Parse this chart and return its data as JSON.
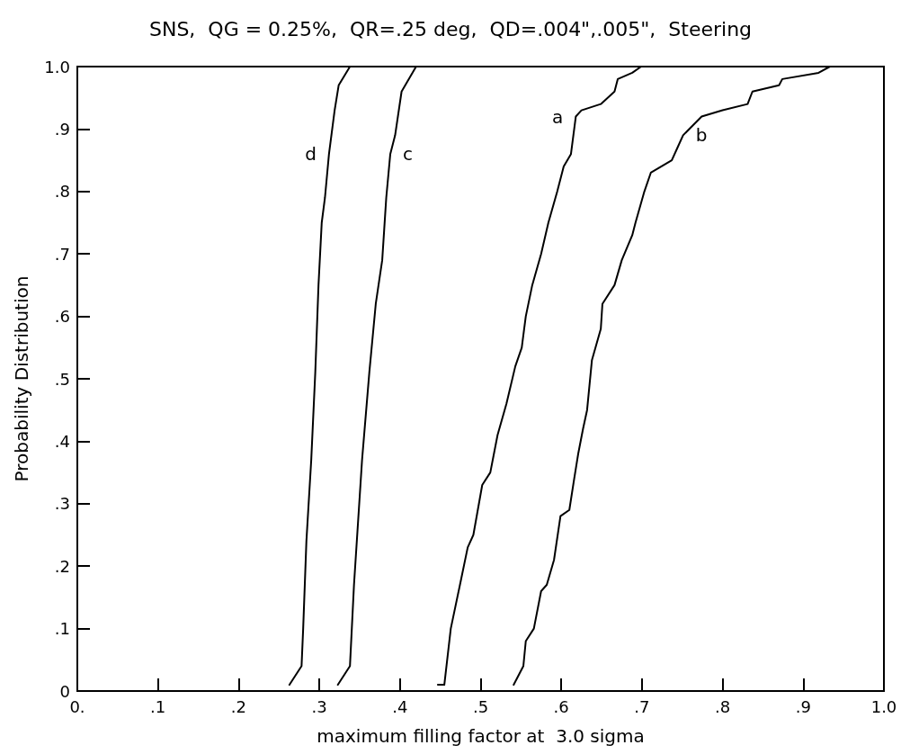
{
  "chart_data": {
    "type": "line",
    "title": "SNS,  QG = 0.25%,  QR=.25 deg,  QD=.004\",.005\",  Steering",
    "xlabel": "maximum filling factor at  3.0 sigma",
    "ylabel": "Probability Distribution",
    "xlim": [
      0,
      1
    ],
    "ylim": [
      0,
      1
    ],
    "xticks": [
      {
        "value": 0,
        "label": "0."
      },
      {
        "value": 0.1,
        "label": ".1"
      },
      {
        "value": 0.2,
        "label": ".2"
      },
      {
        "value": 0.3,
        "label": ".3"
      },
      {
        "value": 0.4,
        "label": ".4"
      },
      {
        "value": 0.5,
        "label": ".5"
      },
      {
        "value": 0.6,
        "label": ".6"
      },
      {
        "value": 0.7,
        "label": ".7"
      },
      {
        "value": 0.8,
        "label": ".8"
      },
      {
        "value": 0.9,
        "label": ".9"
      },
      {
        "value": 1,
        "label": "1.0"
      }
    ],
    "yticks": [
      0,
      {
        "value": 0.1,
        "label": ".1"
      },
      {
        "value": 0.2,
        "label": ".2"
      },
      {
        "value": 0.3,
        "label": ".3"
      },
      {
        "value": 0.4,
        "label": ".4"
      },
      {
        "value": 0.5,
        "label": ".5"
      },
      {
        "value": 0.6,
        "label": ".6"
      },
      {
        "value": 0.7,
        "label": ".7"
      },
      {
        "value": 0.8,
        "label": ".8"
      },
      {
        "value": 0.9,
        "label": ".9"
      },
      {
        "value": 1,
        "label": "1.0"
      }
    ],
    "grid": false,
    "marker": "none",
    "line_style": "solid",
    "series": [
      {
        "name": "d",
        "color": "#000000",
        "x": [
          0.263,
          0.278,
          0.28,
          0.284,
          0.29,
          0.295,
          0.299,
          0.303,
          0.307,
          0.312,
          0.319,
          0.324,
          0.338
        ],
        "values": [
          0.01,
          0.04,
          0.1,
          0.24,
          0.37,
          0.51,
          0.65,
          0.75,
          0.79,
          0.86,
          0.93,
          0.97,
          1.0
        ]
      },
      {
        "name": "c",
        "color": "#000000",
        "x": [
          0.323,
          0.338,
          0.343,
          0.353,
          0.362,
          0.37,
          0.378,
          0.383,
          0.388,
          0.394,
          0.402,
          0.42
        ],
        "values": [
          0.01,
          0.04,
          0.17,
          0.37,
          0.51,
          0.62,
          0.69,
          0.79,
          0.86,
          0.89,
          0.96,
          1.0
        ]
      },
      {
        "name": "a",
        "color": "#000000",
        "x": [
          0.447,
          0.455,
          0.463,
          0.476,
          0.484,
          0.491,
          0.502,
          0.512,
          0.521,
          0.532,
          0.543,
          0.551,
          0.554,
          0.556,
          0.564,
          0.575,
          0.584,
          0.595,
          0.603,
          0.612,
          0.618,
          0.625,
          0.649,
          0.666,
          0.67,
          0.688,
          0.699,
          0.721
        ],
        "values": [
          0.01,
          0.01,
          0.1,
          0.18,
          0.23,
          0.25,
          0.33,
          0.35,
          0.41,
          0.46,
          0.52,
          0.55,
          0.58,
          0.6,
          0.65,
          0.7,
          0.75,
          0.8,
          0.84,
          0.86,
          0.92,
          0.93,
          0.94,
          0.96,
          0.98,
          0.99,
          1.0,
          1.0
        ]
      },
      {
        "name": "b",
        "color": "#000000",
        "x": [
          0.541,
          0.553,
          0.556,
          0.566,
          0.575,
          0.582,
          0.591,
          0.599,
          0.61,
          0.616,
          0.621,
          0.627,
          0.632,
          0.638,
          0.649,
          0.651,
          0.666,
          0.675,
          0.688,
          0.692,
          0.703,
          0.711,
          0.737,
          0.744,
          0.751,
          0.774,
          0.8,
          0.831,
          0.837,
          0.87,
          0.874,
          0.919,
          0.933,
          1.0
        ],
        "values": [
          0.01,
          0.04,
          0.08,
          0.1,
          0.16,
          0.17,
          0.21,
          0.28,
          0.29,
          0.34,
          0.38,
          0.42,
          0.45,
          0.53,
          0.58,
          0.62,
          0.65,
          0.69,
          0.73,
          0.75,
          0.8,
          0.83,
          0.85,
          0.87,
          0.89,
          0.92,
          0.93,
          0.94,
          0.96,
          0.97,
          0.98,
          0.99,
          1.0,
          1.0
        ]
      }
    ]
  }
}
